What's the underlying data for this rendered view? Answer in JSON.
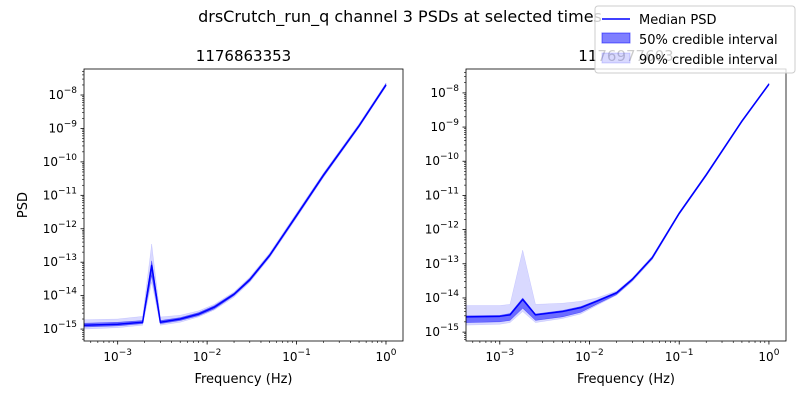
{
  "figure": {
    "suptitle": "drsCrutch_run_q channel 3 PSDs at selected times"
  },
  "legend": {
    "placement": "top-right",
    "items": [
      {
        "label": "Median PSD",
        "kind": "line",
        "color": "#0000ff"
      },
      {
        "label": "50% credible interval",
        "kind": "band",
        "color": "#0000ff",
        "opacity": 0.5
      },
      {
        "label": "90% credible interval",
        "kind": "band",
        "color": "#0000ff",
        "opacity": 0.15
      }
    ]
  },
  "chart_data": [
    {
      "type": "line",
      "title": "1176863353",
      "xlabel": "Frequency (Hz)",
      "ylabel": "PSD",
      "xscale": "log",
      "yscale": "log",
      "xlim": [
        0.00042,
        1.55
      ],
      "ylim": [
        4.4e-16,
        6e-08
      ],
      "xticks": [
        0.001,
        0.01,
        0.1,
        1
      ],
      "xtick_labels": [
        {
          "base": "10",
          "exp": "−3"
        },
        {
          "base": "10",
          "exp": "−2"
        },
        {
          "base": "10",
          "exp": "−1"
        },
        {
          "base": "10",
          "exp": "0"
        }
      ],
      "yticks": [
        1e-15,
        1e-14,
        1e-13,
        1e-12,
        1e-11,
        1e-10,
        1e-09,
        1e-08
      ],
      "ytick_labels": [
        {
          "base": "10",
          "exp": "−15"
        },
        {
          "base": "10",
          "exp": "−14"
        },
        {
          "base": "10",
          "exp": "−13"
        },
        {
          "base": "10",
          "exp": "−12"
        },
        {
          "base": "10",
          "exp": "−11"
        },
        {
          "base": "10",
          "exp": "−10"
        },
        {
          "base": "10",
          "exp": "−9"
        },
        {
          "base": "10",
          "exp": "−8"
        }
      ],
      "x": [
        0.00042,
        0.001,
        0.0019,
        0.0024,
        0.003,
        0.005,
        0.008,
        0.012,
        0.02,
        0.03,
        0.05,
        0.1,
        0.2,
        0.5,
        1.0
      ],
      "median": [
        1.3e-15,
        1.4e-15,
        1.6e-15,
        8e-14,
        1.6e-15,
        2e-15,
        2.8e-15,
        4.5e-15,
        1.1e-14,
        3e-14,
        1.6e-13,
        2.5e-12,
        4e-11,
        1.2e-09,
        2e-08
      ],
      "band50_low": [
        1.15e-15,
        1.25e-15,
        1.45e-15,
        4e-14,
        1.45e-15,
        1.8e-15,
        2.5e-15,
        4e-15,
        1e-14,
        2.7e-14,
        1.45e-13,
        2.25e-12,
        3.6e-11,
        1.1e-09,
        1.85e-08
      ],
      "band50_high": [
        1.5e-15,
        1.6e-15,
        1.8e-15,
        1.1e-13,
        1.8e-15,
        2.2e-15,
        3.1e-15,
        5e-15,
        1.2e-14,
        3.3e-14,
        1.75e-13,
        2.75e-12,
        4.4e-11,
        1.3e-09,
        2.2e-08
      ],
      "band90_low": [
        1e-15,
        1.1e-15,
        1.3e-15,
        2.5e-14,
        1.3e-15,
        1.6e-15,
        2.3e-15,
        3.7e-15,
        9e-15,
        2.5e-14,
        1.35e-13,
        2.1e-12,
        3.4e-11,
        1.05e-09,
        1.75e-08
      ],
      "band90_high": [
        1.9e-15,
        2e-15,
        2.4e-15,
        3.5e-13,
        2.3e-15,
        2.6e-15,
        3.5e-15,
        5.5e-15,
        1.3e-14,
        3.6e-14,
        1.9e-13,
        3e-12,
        4.7e-11,
        1.4e-09,
        2.3e-08
      ]
    },
    {
      "type": "line",
      "title": "1176977603",
      "xlabel": "Frequency (Hz)",
      "ylabel": "",
      "xscale": "log",
      "yscale": "log",
      "xlim": [
        0.00042,
        1.55
      ],
      "ylim": [
        5.5e-16,
        5e-08
      ],
      "xticks": [
        0.001,
        0.01,
        0.1,
        1
      ],
      "xtick_labels": [
        {
          "base": "10",
          "exp": "−3"
        },
        {
          "base": "10",
          "exp": "−2"
        },
        {
          "base": "10",
          "exp": "−1"
        },
        {
          "base": "10",
          "exp": "0"
        }
      ],
      "yticks": [
        1e-15,
        1e-14,
        1e-13,
        1e-12,
        1e-11,
        1e-10,
        1e-09,
        1e-08
      ],
      "ytick_labels": [
        {
          "base": "10",
          "exp": "−15"
        },
        {
          "base": "10",
          "exp": "−14"
        },
        {
          "base": "10",
          "exp": "−13"
        },
        {
          "base": "10",
          "exp": "−12"
        },
        {
          "base": "10",
          "exp": "−11"
        },
        {
          "base": "10",
          "exp": "−10"
        },
        {
          "base": "10",
          "exp": "−9"
        },
        {
          "base": "10",
          "exp": "−8"
        }
      ],
      "x": [
        0.00042,
        0.001,
        0.0013,
        0.0018,
        0.0025,
        0.005,
        0.008,
        0.012,
        0.02,
        0.03,
        0.05,
        0.1,
        0.2,
        0.5,
        1.0
      ],
      "median": [
        2.8e-15,
        2.9e-15,
        3.2e-15,
        9e-15,
        3.2e-15,
        4e-15,
        5.2e-15,
        8e-15,
        1.4e-14,
        3.5e-14,
        1.5e-13,
        3e-12,
        4e-11,
        1.5e-09,
        1.8e-08
      ],
      "band50_low": [
        1.9e-15,
        2e-15,
        2.2e-15,
        5e-15,
        2.2e-15,
        2.8e-15,
        3.8e-15,
        6.5e-15,
        1.25e-14,
        3.2e-14,
        1.38e-13,
        2.8e-12,
        3.7e-11,
        1.4e-09,
        1.7e-08
      ],
      "band50_high": [
        3e-15,
        3.1e-15,
        3.5e-15,
        1e-14,
        3.4e-15,
        4.3e-15,
        5.6e-15,
        8.5e-15,
        1.5e-14,
        3.7e-14,
        1.6e-13,
        3.2e-12,
        4.2e-11,
        1.55e-09,
        1.9e-08
      ],
      "band90_low": [
        1.6e-15,
        1.7e-15,
        1.9e-15,
        4e-15,
        1.9e-15,
        2.5e-15,
        3.4e-15,
        6e-15,
        1.2e-14,
        3e-14,
        1.3e-13,
        2.7e-12,
        3.6e-11,
        1.35e-09,
        1.65e-08
      ],
      "band90_high": [
        6e-15,
        6e-15,
        6.5e-15,
        2.5e-13,
        6.5e-15,
        7e-15,
        8e-15,
        1e-14,
        1.6e-14,
        3.9e-14,
        1.7e-13,
        3.3e-12,
        4.4e-11,
        1.6e-09,
        1.95e-08
      ]
    }
  ]
}
